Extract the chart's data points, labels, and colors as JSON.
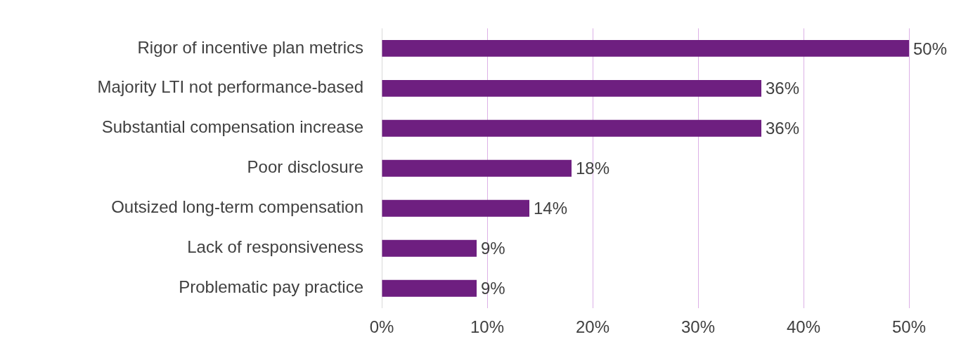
{
  "chart_data": {
    "type": "bar",
    "orientation": "horizontal",
    "categories": [
      "Rigor of incentive plan metrics",
      "Majority LTI not performance-based",
      "Substantial compensation increase",
      "Poor disclosure",
      "Outsized long-term compensation",
      "Lack of responsiveness",
      "Problematic pay practice"
    ],
    "values": [
      50,
      36,
      36,
      18,
      14,
      9,
      9
    ],
    "value_labels": [
      "50%",
      "36%",
      "36%",
      "18%",
      "14%",
      "9%",
      "9%"
    ],
    "color": "#6e1f80",
    "xlim": [
      0,
      50
    ],
    "xticks": [
      {
        "value": 0,
        "label": "0%"
      },
      {
        "value": 10,
        "label": "10%"
      },
      {
        "value": 20,
        "label": "20%"
      },
      {
        "value": 30,
        "label": "30%"
      },
      {
        "value": 40,
        "label": "40%"
      },
      {
        "value": 50,
        "label": "50%"
      }
    ],
    "grid": "x",
    "legend": false
  }
}
